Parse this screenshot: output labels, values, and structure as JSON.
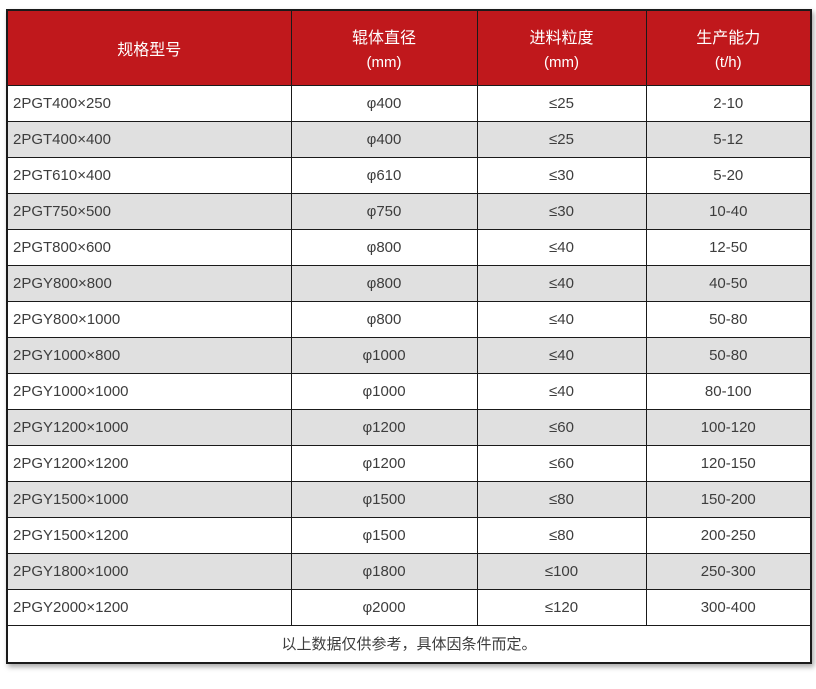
{
  "table": {
    "headers": [
      {
        "label": "规格型号",
        "unit": ""
      },
      {
        "label": "辊体直径",
        "unit": "(mm)"
      },
      {
        "label": "进料粒度",
        "unit": "(mm)"
      },
      {
        "label": "生产能力",
        "unit": "(t/h)"
      }
    ],
    "rows": [
      [
        "2PGT400×250",
        "φ400",
        "≤25",
        "2-10"
      ],
      [
        "2PGT400×400",
        "φ400",
        "≤25",
        "5-12"
      ],
      [
        "2PGT610×400",
        "φ610",
        "≤30",
        "5-20"
      ],
      [
        "2PGT750×500",
        "φ750",
        "≤30",
        "10-40"
      ],
      [
        "2PGT800×600",
        "φ800",
        "≤40",
        "12-50"
      ],
      [
        "2PGY800×800",
        "φ800",
        "≤40",
        "40-50"
      ],
      [
        "2PGY800×1000",
        "φ800",
        "≤40",
        "50-80"
      ],
      [
        "2PGY1000×800",
        "φ1000",
        "≤40",
        "50-80"
      ],
      [
        "2PGY1000×1000",
        "φ1000",
        "≤40",
        "80-100"
      ],
      [
        "2PGY1200×1000",
        "φ1200",
        "≤60",
        "100-120"
      ],
      [
        "2PGY1200×1200",
        "φ1200",
        "≤60",
        "120-150"
      ],
      [
        "2PGY1500×1000",
        "φ1500",
        "≤80",
        "150-200"
      ],
      [
        "2PGY1500×1200",
        "φ1500",
        "≤80",
        "200-250"
      ],
      [
        "2PGY1800×1000",
        "φ1800",
        "≤100",
        "250-300"
      ],
      [
        "2PGY2000×1200",
        "φ2000",
        "≤120",
        "300-400"
      ]
    ],
    "footnote": "以上数据仅供参考，具体因条件而定。",
    "colors": {
      "header_bg": "#c0181c",
      "header_text": "#ffffff",
      "row_bg": "#ffffff",
      "row_alt_bg": "#e0e0e0",
      "border": "#1a1a1a",
      "body_text": "#3d3d3d"
    }
  }
}
